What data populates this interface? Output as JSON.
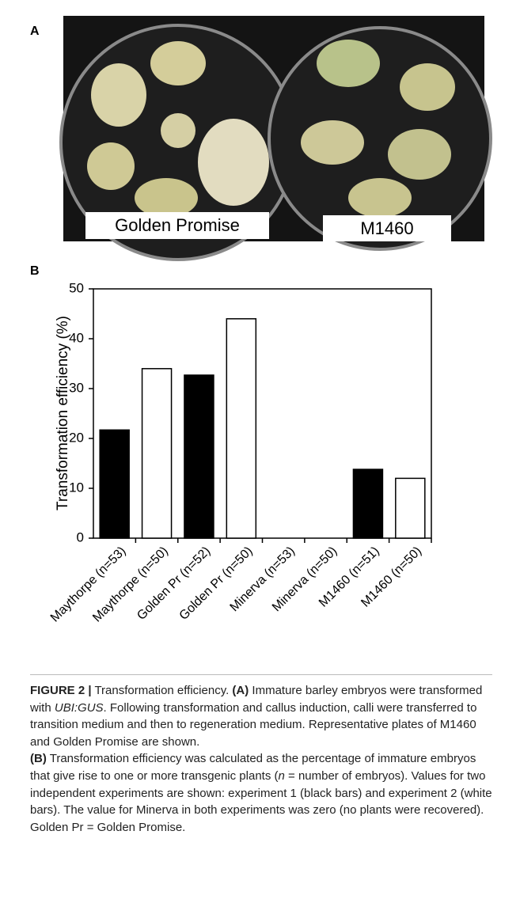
{
  "panels": {
    "a": "A",
    "b": "B"
  },
  "photo": {
    "labels": [
      "Golden Promise",
      "M1460"
    ]
  },
  "chart_data": {
    "type": "bar",
    "y_label": "Transformation efficiency (%)",
    "categories": [
      "Maythorpe (n=53)",
      "Maythorpe (n=50)",
      "Golden Pr (n=52)",
      "Golden Pr (n=50)",
      "Minerva (n=53)",
      "Minerva (n=50)",
      "M1460 (n=51)",
      "M1460 (n=50)"
    ],
    "values": [
      21.7,
      34,
      32.7,
      44,
      0,
      0,
      13.8,
      12
    ],
    "colors": [
      "#000000",
      "#ffffff",
      "#000000",
      "#ffffff",
      "#000000",
      "#ffffff",
      "#000000",
      "#ffffff"
    ],
    "ylim": [
      0,
      50
    ],
    "yticks": [
      0,
      10,
      20,
      30,
      40,
      50
    ],
    "grid": false
  },
  "caption": {
    "figure_label": "FIGURE 2 |",
    "title": "Transformation efficiency.",
    "part_a_label": "(A)",
    "part_a_text_1": "Immature barley embryos were transformed with",
    "part_a_gene": "UBI:GUS",
    "part_a_text_2": ". Following transformation and callus induction, calli were transferred to transition medium and then to regeneration medium. Representative plates of M1460 and Golden Promise are shown.",
    "part_b_label": "(B)",
    "part_b_text_1": "Transformation efficiency was calculated as the percentage of immature embryos that give rise to one or more transgenic plants (",
    "part_b_n": "n",
    "part_b_text_2": " = number of embryos). Values for two independent experiments are shown: experiment 1 (black bars) and experiment 2 (white bars). The value for Minerva in both experiments was zero (no plants were recovered). Golden Pr = Golden Promise."
  }
}
